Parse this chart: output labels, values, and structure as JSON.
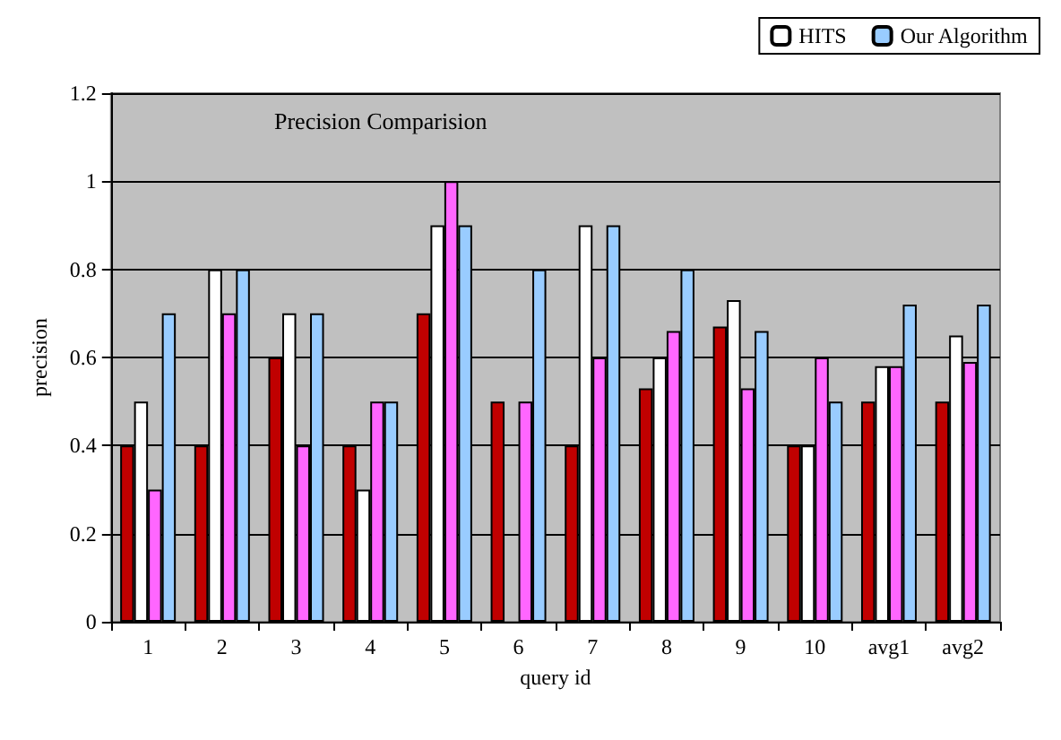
{
  "chart_data": {
    "type": "bar",
    "title": "Precision Comparision",
    "xlabel": "query id",
    "ylabel": "precision",
    "categories": [
      "1",
      "2",
      "3",
      "4",
      "5",
      "6",
      "7",
      "8",
      "9",
      "10",
      "avg1",
      "avg2"
    ],
    "series": [
      {
        "color": "#c00000",
        "values": [
          0.4,
          0.4,
          0.6,
          0.4,
          0.7,
          0.5,
          0.4,
          0.53,
          0.67,
          0.4,
          0.5,
          0.5
        ]
      },
      {
        "name": "HITS",
        "color": "#ffffff",
        "values": [
          0.5,
          0.8,
          0.7,
          0.3,
          0.9,
          null,
          0.9,
          0.6,
          0.73,
          0.4,
          0.58,
          0.65
        ]
      },
      {
        "color": "#ff66ff",
        "values": [
          0.3,
          0.7,
          0.4,
          0.5,
          1.0,
          0.5,
          0.6,
          0.66,
          0.53,
          0.6,
          0.58,
          0.59
        ]
      },
      {
        "name": "Our Algorithm",
        "color": "#99ccff",
        "values": [
          0.7,
          0.8,
          0.7,
          0.5,
          0.9,
          0.8,
          0.9,
          0.8,
          0.66,
          0.5,
          0.72,
          0.72
        ]
      }
    ],
    "ylim": [
      0,
      1.2
    ],
    "yticks": [
      0,
      0.2,
      0.4,
      0.6,
      0.8,
      1,
      1.2
    ],
    "grid": "y",
    "legend": "top right"
  }
}
